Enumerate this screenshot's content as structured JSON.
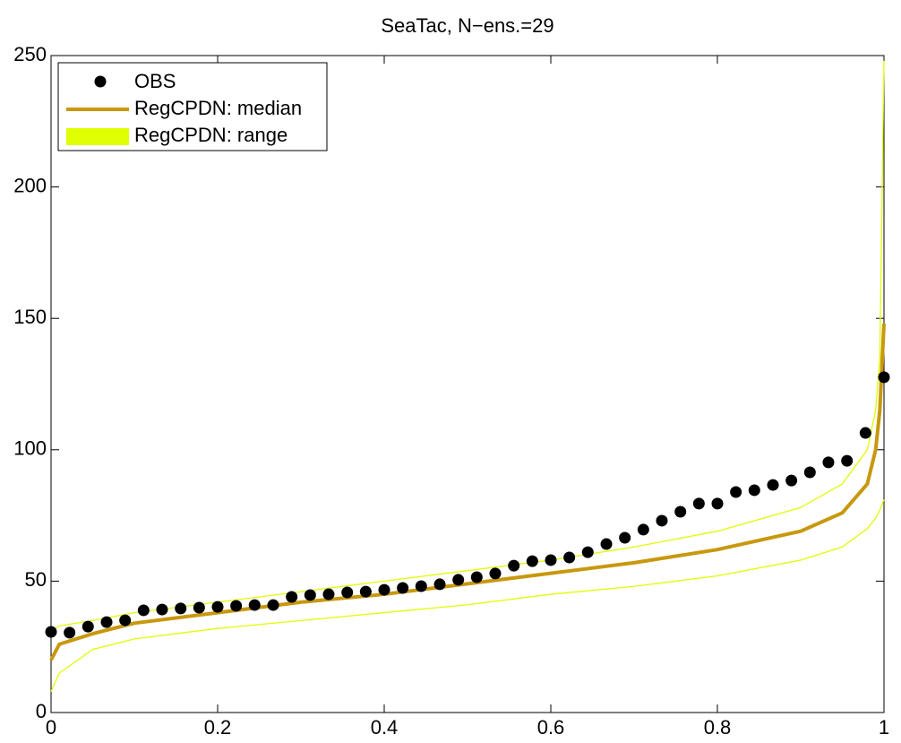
{
  "chart_data": {
    "type": "line",
    "title": "SeaTac, N−ens.=29",
    "xlim": [
      0,
      1
    ],
    "xticks": [
      0,
      0.2,
      0.4,
      0.6,
      0.8,
      1
    ],
    "ylim": [
      0,
      250
    ],
    "yticks": [
      0,
      50,
      100,
      150,
      200,
      250
    ],
    "legend": "upper left",
    "obs": {
      "name": "OBS",
      "color": "#000000",
      "x": [
        0,
        0.0222,
        0.0444,
        0.0667,
        0.0889,
        0.1111,
        0.1333,
        0.1556,
        0.1778,
        0.2,
        0.2222,
        0.2444,
        0.2667,
        0.2889,
        0.3111,
        0.3333,
        0.3556,
        0.3778,
        0.4,
        0.4222,
        0.4444,
        0.4667,
        0.4889,
        0.5111,
        0.5333,
        0.5556,
        0.5778,
        0.6,
        0.6222,
        0.6444,
        0.6667,
        0.6889,
        0.7111,
        0.7333,
        0.7556,
        0.7778,
        0.8,
        0.8222,
        0.8444,
        0.8667,
        0.8889,
        0.9111,
        0.9333,
        0.9556,
        0.9778,
        1
      ],
      "values": [
        30.7,
        30.4,
        32.7,
        34.4,
        35.1,
        38.9,
        39.2,
        39.6,
        39.9,
        40.2,
        40.6,
        40.9,
        40.9,
        44.0,
        44.7,
        45.0,
        45.7,
        46.0,
        46.7,
        47.4,
        48.1,
        48.8,
        50.5,
        51.5,
        52.9,
        55.9,
        57.6,
        58.0,
        59.0,
        61.0,
        64.1,
        66.5,
        69.6,
        73.0,
        76.4,
        79.5,
        79.5,
        83.9,
        84.6,
        86.6,
        88.3,
        91.4,
        95.2,
        95.8,
        106.4,
        127.6
      ]
    },
    "curve_x": [
      0,
      0.01,
      0.05,
      0.1,
      0.2,
      0.3,
      0.4,
      0.5,
      0.6,
      0.7,
      0.8,
      0.9,
      0.95,
      0.98,
      0.99,
      0.995,
      1
    ],
    "median": {
      "name": "RegCPDN: median",
      "color": "#c8980e",
      "values": [
        20,
        26,
        30,
        34,
        38,
        42,
        45,
        49,
        53,
        57,
        62,
        69,
        76,
        87,
        100,
        115,
        148
      ]
    },
    "range": {
      "name": "RegCPDN: range",
      "color": "#e0ff00",
      "lower": [
        8,
        15,
        24,
        28,
        32,
        35,
        38,
        41,
        45,
        48,
        52,
        58,
        63,
        70,
        74,
        77,
        81
      ],
      "upper": [
        31,
        33,
        35,
        38,
        42,
        46,
        50,
        54,
        58,
        63,
        69,
        78,
        87,
        100,
        115,
        135,
        248
      ]
    }
  }
}
